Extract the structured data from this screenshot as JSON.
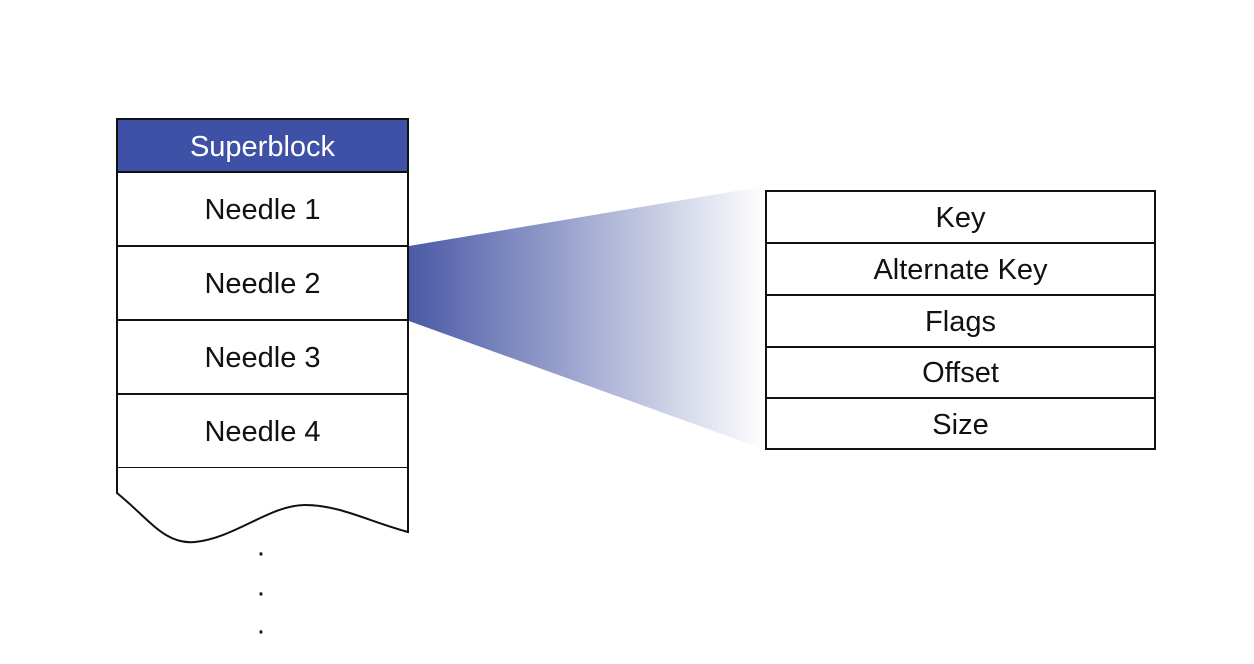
{
  "store": {
    "header": "Superblock",
    "needles": [
      "Needle 1",
      "Needle 2",
      "Needle 3",
      "Needle 4"
    ],
    "continuation": [
      "·",
      "·",
      "·"
    ]
  },
  "needle_fields": [
    "Key",
    "Alternate Key",
    "Flags",
    "Offset",
    "Size"
  ],
  "colors": {
    "header_fill": "#3f51a6",
    "fan_start": "#4a5aa5",
    "stroke": "#111111",
    "background": "#ffffff"
  }
}
